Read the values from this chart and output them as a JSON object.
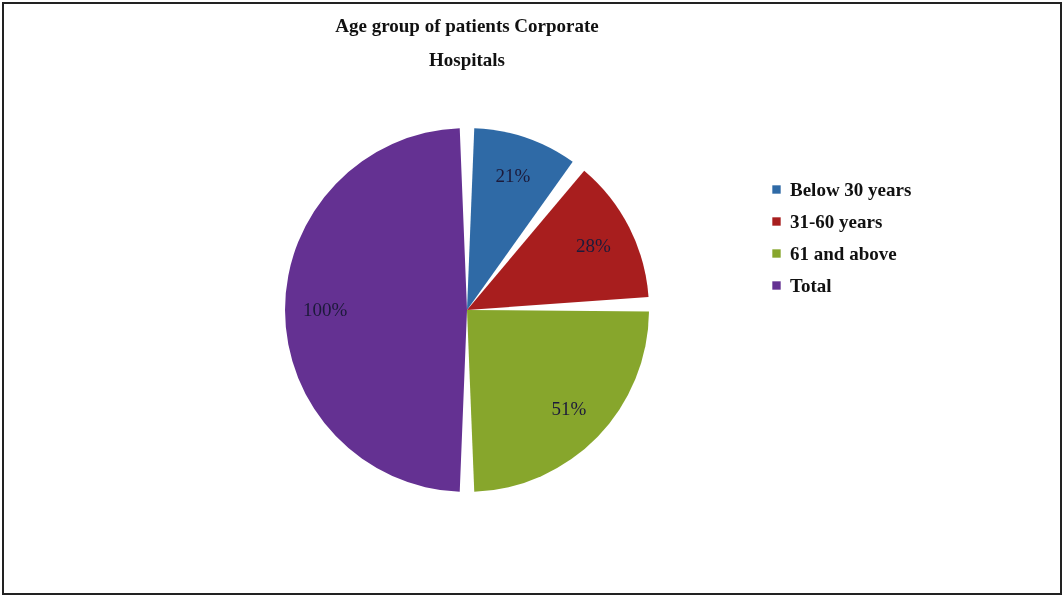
{
  "chart_data": {
    "type": "pie",
    "title": "Age group of patients Corporate Hospitals",
    "categories": [
      "Below 30 years",
      "31-60 years",
      "61 and above",
      "Total"
    ],
    "values": [
      21,
      28,
      51,
      100
    ],
    "colors": [
      "#2f6aa6",
      "#a81e1e",
      "#87a62c",
      "#643192"
    ],
    "value_labels": [
      "21%",
      "28%",
      "51%",
      "100%"
    ],
    "legend": "right"
  }
}
